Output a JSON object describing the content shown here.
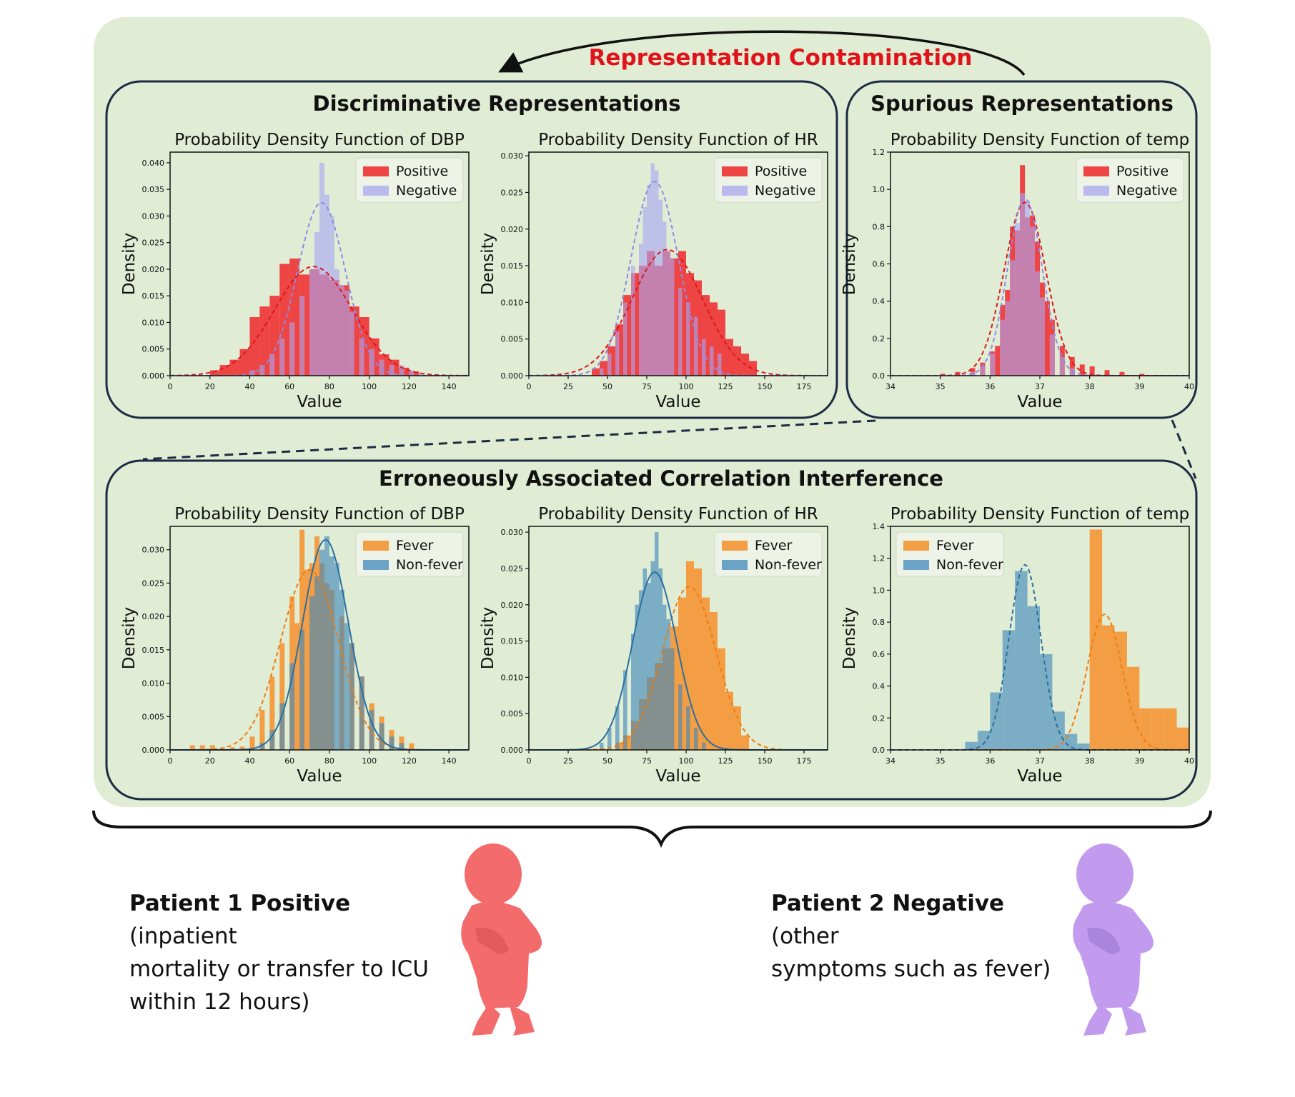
{
  "contamination_label": "Representation Contamination",
  "colors": {
    "background_panel": "#e0ecd4",
    "panel_border": "#1c2a44",
    "contamination_text": "#e0131a",
    "positive": "#ee3b3b",
    "negative": "#a9a7f2",
    "overlap_pn": "#d9456e",
    "fever": "#f39a3c",
    "nonfever": "#3d88b9",
    "overlap_fn": "#ad8650",
    "patient1": "#f46b6b",
    "patient2": "#c29bee"
  },
  "panels": [
    {
      "id": "discriminative",
      "title": "Discriminative Representations"
    },
    {
      "id": "spurious",
      "title": "Spurious Representations"
    },
    {
      "id": "erroneous",
      "title": "Erroneously Associated Correlation Interference"
    }
  ],
  "chart_data": [
    {
      "id": "dbp_pos_neg",
      "type": "histogram",
      "title": "Probability Density Function of DBP",
      "xlabel": "Value",
      "ylabel": "Density",
      "xlim": [
        0,
        150
      ],
      "ylim": [
        0,
        0.042
      ],
      "xticks": [
        0,
        20,
        40,
        60,
        80,
        100,
        120,
        140
      ],
      "yticks": [
        0.0,
        0.005,
        0.01,
        0.015,
        0.02,
        0.025,
        0.03,
        0.035,
        0.04
      ],
      "ytick_labels": [
        "0.000",
        "0.005",
        "0.010",
        "0.015",
        "0.020",
        "0.025",
        "0.030",
        "0.035",
        "0.040"
      ],
      "legend": "top-right",
      "series": [
        {
          "name": "Positive",
          "color_key": "positive",
          "mean": 72,
          "sd": 19.5,
          "peak": 0.0205,
          "bins_x": [
            20,
            25,
            30,
            35,
            40,
            45,
            50,
            55,
            60,
            65,
            70,
            75,
            80,
            85,
            90,
            95,
            100,
            105,
            110,
            115,
            120
          ],
          "bins_y": [
            0.001,
            0.002,
            0.003,
            0.005,
            0.011,
            0.013,
            0.015,
            0.021,
            0.022,
            0.019,
            0.02,
            0.019,
            0.018,
            0.017,
            0.013,
            0.011,
            0.007,
            0.004,
            0.003,
            0.0015,
            0.0008
          ]
        },
        {
          "name": "Negative",
          "color_key": "negative",
          "mean": 76,
          "sd": 12,
          "peak": 0.0325,
          "bins_x": [
            40,
            45,
            50,
            55,
            60,
            65,
            70,
            72.5,
            75,
            77.5,
            80,
            82.5,
            85,
            87.5,
            90,
            95,
            100,
            105,
            110,
            115,
            120,
            125
          ],
          "bins_y": [
            0.001,
            0.002,
            0.004,
            0.007,
            0.01,
            0.015,
            0.02,
            0.027,
            0.04,
            0.034,
            0.03,
            0.02,
            0.017,
            0.016,
            0.012,
            0.007,
            0.005,
            0.003,
            0.002,
            0.002,
            0.001,
            0.0005
          ]
        }
      ]
    },
    {
      "id": "hr_pos_neg",
      "type": "histogram",
      "title": "Probability Density Function of HR",
      "xlabel": "Value",
      "ylabel": "Density",
      "xlim": [
        0,
        190
      ],
      "ylim": [
        0,
        0.0305
      ],
      "xticks": [
        0,
        25,
        50,
        75,
        100,
        125,
        150,
        175
      ],
      "yticks": [
        0.0,
        0.005,
        0.01,
        0.015,
        0.02,
        0.025,
        0.03
      ],
      "ytick_labels": [
        "0.000",
        "0.005",
        "0.010",
        "0.015",
        "0.020",
        "0.025",
        "0.030"
      ],
      "legend": "top-right",
      "series": [
        {
          "name": "Positive",
          "color_key": "positive",
          "mean": 88,
          "sd": 22.5,
          "peak": 0.0172,
          "bins_x": [
            40,
            45,
            50,
            55,
            60,
            65,
            70,
            75,
            80,
            85,
            90,
            95,
            100,
            105,
            110,
            115,
            120,
            125,
            130,
            135,
            140
          ],
          "bins_y": [
            0.001,
            0.002,
            0.004,
            0.007,
            0.011,
            0.014,
            0.015,
            0.017,
            0.015,
            0.017,
            0.016,
            0.017,
            0.014,
            0.013,
            0.011,
            0.01,
            0.009,
            0.005,
            0.004,
            0.003,
            0.002
          ]
        },
        {
          "name": "Negative",
          "color_key": "negative",
          "mean": 80,
          "sd": 15,
          "peak": 0.0265,
          "bins_x": [
            45,
            50,
            55,
            60,
            65,
            70,
            72.5,
            75,
            77.5,
            80,
            82.5,
            85,
            87.5,
            90,
            95,
            100,
            105,
            110,
            115,
            120
          ],
          "bins_y": [
            0.001,
            0.003,
            0.006,
            0.01,
            0.015,
            0.018,
            0.023,
            0.026,
            0.029,
            0.028,
            0.024,
            0.021,
            0.017,
            0.016,
            0.012,
            0.01,
            0.008,
            0.005,
            0.004,
            0.003
          ]
        }
      ]
    },
    {
      "id": "temp_pos_neg",
      "type": "histogram",
      "title": "Probability Density Function of temp",
      "xlabel": "Value",
      "ylabel": "Density",
      "xlim": [
        34,
        40
      ],
      "ylim": [
        0,
        1.2
      ],
      "xticks": [
        34,
        35,
        36,
        37,
        38,
        39,
        40
      ],
      "yticks": [
        0.0,
        0.2,
        0.4,
        0.6,
        0.8,
        1.0,
        1.2
      ],
      "ytick_labels": [
        "0.0",
        "0.2",
        "0.4",
        "0.6",
        "0.8",
        "1.0",
        "1.2"
      ],
      "legend": "top-right",
      "series": [
        {
          "name": "Positive",
          "color_key": "positive",
          "mean": 36.7,
          "sd": 0.42,
          "peak": 0.93,
          "bins_x": [
            35.0,
            35.3,
            35.6,
            35.8,
            36.0,
            36.1,
            36.2,
            36.3,
            36.4,
            36.5,
            36.6,
            36.7,
            36.8,
            36.9,
            37.0,
            37.1,
            37.2,
            37.4,
            37.6,
            37.8,
            38.0,
            38.3,
            38.6,
            39.0
          ],
          "bins_y": [
            0.01,
            0.02,
            0.04,
            0.07,
            0.13,
            0.16,
            0.38,
            0.46,
            0.8,
            0.78,
            1.13,
            0.85,
            0.86,
            0.72,
            0.5,
            0.4,
            0.3,
            0.16,
            0.1,
            0.06,
            0.05,
            0.03,
            0.02,
            0.01
          ]
        },
        {
          "name": "Negative",
          "color_key": "negative",
          "mean": 36.7,
          "sd": 0.35,
          "peak": 0.95,
          "bins_x": [
            35.6,
            35.8,
            36.0,
            36.2,
            36.3,
            36.4,
            36.5,
            36.6,
            36.7,
            36.8,
            36.9,
            37.0,
            37.2,
            37.4,
            37.6
          ],
          "bins_y": [
            0.02,
            0.05,
            0.12,
            0.3,
            0.4,
            0.62,
            0.82,
            0.98,
            0.94,
            0.8,
            0.56,
            0.42,
            0.22,
            0.1,
            0.04
          ]
        }
      ]
    },
    {
      "id": "dbp_fever",
      "type": "histogram",
      "title": "Probability Density Function of DBP",
      "xlabel": "Value",
      "ylabel": "Density",
      "xlim": [
        0,
        150
      ],
      "ylim": [
        0,
        0.0335
      ],
      "xticks": [
        0,
        20,
        40,
        60,
        80,
        100,
        120,
        140
      ],
      "yticks": [
        0.0,
        0.005,
        0.01,
        0.015,
        0.02,
        0.025,
        0.03
      ],
      "ytick_labels": [
        "0.000",
        "0.005",
        "0.010",
        "0.015",
        "0.020",
        "0.025",
        "0.030"
      ],
      "legend": "top-right",
      "series": [
        {
          "name": "Fever",
          "color_key": "fever",
          "mean": 70,
          "sd": 14.5,
          "peak": 0.027,
          "bins_x": [
            10,
            15,
            20,
            25,
            30,
            35,
            40,
            45,
            50,
            55,
            60,
            62.5,
            65,
            67.5,
            70,
            72.5,
            75,
            77.5,
            80,
            85,
            90,
            95,
            100,
            105,
            110,
            115,
            120
          ],
          "bins_y": [
            0.0007,
            0.0007,
            0.0007,
            0.0003,
            0.0004,
            0.0005,
            0.002,
            0.006,
            0.011,
            0.016,
            0.023,
            0.019,
            0.033,
            0.027,
            0.028,
            0.032,
            0.028,
            0.025,
            0.024,
            0.02,
            0.016,
            0.011,
            0.007,
            0.005,
            0.003,
            0.002,
            0.001
          ]
        },
        {
          "name": "Non-fever",
          "color_key": "nonfever",
          "mean": 78,
          "sd": 11.5,
          "peak": 0.0315,
          "bins_x": [
            45,
            50,
            55,
            60,
            65,
            70,
            72.5,
            75,
            77.5,
            80,
            82.5,
            85,
            87.5,
            90,
            95,
            100,
            105,
            110,
            115
          ],
          "bins_y": [
            0.001,
            0.003,
            0.007,
            0.013,
            0.018,
            0.023,
            0.026,
            0.03,
            0.032,
            0.029,
            0.028,
            0.024,
            0.019,
            0.016,
            0.011,
            0.006,
            0.004,
            0.002,
            0.001
          ]
        }
      ]
    },
    {
      "id": "hr_fever",
      "type": "histogram",
      "title": "Probability Density Function of HR",
      "xlabel": "Value",
      "ylabel": "Density",
      "xlim": [
        0,
        190
      ],
      "ylim": [
        0,
        0.0308
      ],
      "xticks": [
        0,
        25,
        50,
        75,
        100,
        125,
        150,
        175
      ],
      "yticks": [
        0.0,
        0.005,
        0.01,
        0.015,
        0.02,
        0.025,
        0.03
      ],
      "ytick_labels": [
        "0.000",
        "0.005",
        "0.010",
        "0.015",
        "0.020",
        "0.025",
        "0.030"
      ],
      "legend": "top-right",
      "series": [
        {
          "name": "Fever",
          "color_key": "fever",
          "mean": 102,
          "sd": 17,
          "peak": 0.0225,
          "bins_x": [
            55,
            60,
            65,
            70,
            75,
            80,
            85,
            90,
            95,
            100,
            105,
            110,
            115,
            120,
            125,
            130,
            135
          ],
          "bins_y": [
            0.001,
            0.002,
            0.004,
            0.007,
            0.01,
            0.012,
            0.014,
            0.017,
            0.021,
            0.026,
            0.025,
            0.021,
            0.019,
            0.014,
            0.008,
            0.006,
            0.002
          ]
        },
        {
          "name": "Non-fever",
          "color_key": "nonfever",
          "mean": 80,
          "sd": 14,
          "peak": 0.0245,
          "bins_x": [
            45,
            50,
            55,
            60,
            65,
            67.5,
            70,
            72.5,
            75,
            77.5,
            80,
            82.5,
            85,
            87.5,
            90,
            95,
            100,
            105,
            110
          ],
          "bins_y": [
            0.001,
            0.003,
            0.006,
            0.011,
            0.016,
            0.02,
            0.022,
            0.025,
            0.023,
            0.026,
            0.03,
            0.025,
            0.02,
            0.018,
            0.014,
            0.009,
            0.006,
            0.003,
            0.001
          ]
        }
      ]
    },
    {
      "id": "temp_fever",
      "type": "histogram",
      "title": "Probability Density Function of temp",
      "xlabel": "Value",
      "ylabel": "Density",
      "xlim": [
        34,
        40
      ],
      "ylim": [
        0,
        1.4
      ],
      "xticks": [
        34,
        35,
        36,
        37,
        38,
        39,
        40
      ],
      "yticks": [
        0.0,
        0.2,
        0.4,
        0.6,
        0.8,
        1.0,
        1.2,
        1.4
      ],
      "ytick_labels": [
        "0.0",
        "0.2",
        "0.4",
        "0.6",
        "0.8",
        "1.0",
        "1.2",
        "1.4"
      ],
      "legend": "top-left",
      "series": [
        {
          "name": "Fever",
          "color_key": "fever",
          "mean": 38.3,
          "sd": 0.35,
          "peak": 0.85,
          "bins_x": [
            38.0,
            38.25,
            38.5,
            38.75,
            39.0,
            39.25,
            39.5,
            39.75
          ],
          "bins_y": [
            1.38,
            0.78,
            0.74,
            0.52,
            0.26,
            0.26,
            0.26,
            0.14
          ]
        },
        {
          "name": "Non-fever",
          "color_key": "nonfever",
          "mean": 36.7,
          "sd": 0.32,
          "peak": 1.16,
          "bins_x": [
            35.5,
            35.75,
            36.0,
            36.25,
            36.5,
            36.75,
            37.0,
            37.25,
            37.5,
            37.75
          ],
          "bins_y": [
            0.05,
            0.12,
            0.36,
            0.75,
            1.12,
            0.9,
            0.6,
            0.24,
            0.1,
            0.04
          ]
        }
      ]
    }
  ],
  "patients": [
    {
      "bold": "Patient 1 Positive",
      "rest": " (inpatient mortality or transfer to ICU within 12 hours)",
      "lines": [
        [
          "Patient 1 Positive",
          " (inpatient"
        ],
        [
          "",
          "mortality or transfer to ICU"
        ],
        [
          "",
          "within 12 hours)"
        ]
      ]
    },
    {
      "bold": "Patient 2 Negative",
      "rest": " (other symptoms such as fever)",
      "lines": [
        [
          "Patient 2 Negative",
          " (other"
        ],
        [
          "",
          "symptoms such as fever)"
        ]
      ]
    }
  ]
}
